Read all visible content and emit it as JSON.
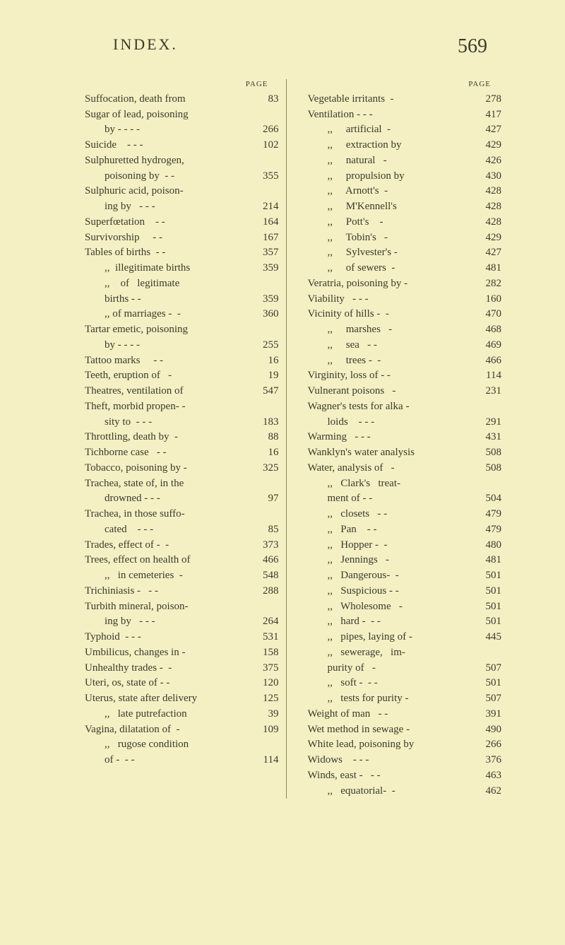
{
  "header": {
    "title": "INDEX.",
    "page_number": "569",
    "page_label": "PAGE"
  },
  "left_column": [
    {
      "text": "Suffocation, death from",
      "page": "83"
    },
    {
      "text": "Sugar of lead, poisoning",
      "page": ""
    },
    {
      "text": "by - - - -",
      "page": "266",
      "indent": 1
    },
    {
      "text": "Suicide    - - -",
      "page": "102"
    },
    {
      "text": "Sulphuretted hydrogen,",
      "page": ""
    },
    {
      "text": "poisoning by  - -",
      "page": "355",
      "indent": 1
    },
    {
      "text": "Sulphuric acid, poison-",
      "page": ""
    },
    {
      "text": "ing by   - - -",
      "page": "214",
      "indent": 1
    },
    {
      "text": "Superfœtation    - -",
      "page": "164"
    },
    {
      "text": "Survivorship     - -",
      "page": "167"
    },
    {
      "text": "",
      "page": ""
    },
    {
      "text": "Tables of births  - -",
      "page": "357"
    },
    {
      "text": ",,  illegitimate births",
      "page": "359",
      "indent": 1
    },
    {
      "text": ",,    of   legitimate",
      "page": "",
      "indent": 1
    },
    {
      "text": "births - -",
      "page": "359",
      "indent": 2
    },
    {
      "text": ",, of marriages -  -",
      "page": "360",
      "indent": 1
    },
    {
      "text": "Tartar emetic, poisoning",
      "page": ""
    },
    {
      "text": "by - - - -",
      "page": "255",
      "indent": 1
    },
    {
      "text": "Tattoo marks     - -",
      "page": "16"
    },
    {
      "text": "Teeth, eruption of   -",
      "page": "19"
    },
    {
      "text": "Theatres, ventilation of",
      "page": "547"
    },
    {
      "text": "Theft, morbid propen- -",
      "page": ""
    },
    {
      "text": "sity to  - - -",
      "page": "183",
      "indent": 1
    },
    {
      "text": "Throttling, death by  -",
      "page": "88"
    },
    {
      "text": "Tichborne case   - -",
      "page": "16"
    },
    {
      "text": "Tobacco, poisoning by -",
      "page": "325"
    },
    {
      "text": "Trachea, state of, in the",
      "page": ""
    },
    {
      "text": "drowned - - -",
      "page": "97",
      "indent": 1
    },
    {
      "text": "Trachea, in those suffo-",
      "page": ""
    },
    {
      "text": "cated    - - -",
      "page": "85",
      "indent": 1
    },
    {
      "text": "Trades, effect of -  -",
      "page": "373"
    },
    {
      "text": "Trees, effect on health of",
      "page": "466"
    },
    {
      "text": ",,   in cemeteries  -",
      "page": "548",
      "indent": 1
    },
    {
      "text": "Trichiniasis -   - -",
      "page": "288"
    },
    {
      "text": "Turbith mineral, poison-",
      "page": ""
    },
    {
      "text": "ing by   - - -",
      "page": "264",
      "indent": 1
    },
    {
      "text": "Typhoid  - - -",
      "page": "531"
    },
    {
      "text": "",
      "page": ""
    },
    {
      "text": "Umbilicus, changes in -",
      "page": "158"
    },
    {
      "text": "Unhealthy trades -  -",
      "page": "375"
    },
    {
      "text": "Uteri, os, state of - -",
      "page": "120"
    },
    {
      "text": "Uterus, state after delivery",
      "page": "125"
    },
    {
      "text": ",,   late putrefaction",
      "page": "39",
      "indent": 1
    },
    {
      "text": "",
      "page": ""
    },
    {
      "text": "Vagina, dilatation of  -",
      "page": "109"
    },
    {
      "text": ",,   rugose condition",
      "page": "",
      "indent": 1
    },
    {
      "text": "of -  - -",
      "page": "114",
      "indent": 2
    }
  ],
  "right_column": [
    {
      "text": "Vegetable irritants  -",
      "page": "278"
    },
    {
      "text": "Ventilation - - -",
      "page": "417"
    },
    {
      "text": ",,     artificial  -",
      "page": "427",
      "indent": 1
    },
    {
      "text": ",,     extraction by",
      "page": "429",
      "indent": 1
    },
    {
      "text": ",,     natural   -",
      "page": "426",
      "indent": 1
    },
    {
      "text": ",,     propulsion by",
      "page": "430",
      "indent": 1
    },
    {
      "text": ",,     Arnott's  -",
      "page": "428",
      "indent": 1
    },
    {
      "text": ",,     M'Kennell's",
      "page": "428",
      "indent": 1
    },
    {
      "text": ",,     Pott's    -",
      "page": "428",
      "indent": 1
    },
    {
      "text": ",,     Tobin's   -",
      "page": "429",
      "indent": 1
    },
    {
      "text": ",,     Sylvester's -",
      "page": "427",
      "indent": 1
    },
    {
      "text": ",,     of sewers  -",
      "page": "481",
      "indent": 1
    },
    {
      "text": "Veratria, poisoning by -",
      "page": "282"
    },
    {
      "text": "Viability   - - -",
      "page": "160"
    },
    {
      "text": "Vicinity of hills -  -",
      "page": "470"
    },
    {
      "text": ",,     marshes   -",
      "page": "468",
      "indent": 1
    },
    {
      "text": ",,     sea   - -",
      "page": "469",
      "indent": 1
    },
    {
      "text": ",,     trees -  -",
      "page": "466",
      "indent": 1
    },
    {
      "text": "Virginity, loss of - -",
      "page": "114"
    },
    {
      "text": "Vulnerant poisons   -",
      "page": "231"
    },
    {
      "text": "",
      "page": ""
    },
    {
      "text": "Wagner's tests for alka -",
      "page": ""
    },
    {
      "text": "loids    - - -",
      "page": "291",
      "indent": 1
    },
    {
      "text": "Warming   - - -",
      "page": "431"
    },
    {
      "text": "Wanklyn's water analysis",
      "page": "508"
    },
    {
      "text": "Water, analysis of   -",
      "page": "508"
    },
    {
      "text": ",,   Clark's   treat-",
      "page": "",
      "indent": 1
    },
    {
      "text": "ment of - -",
      "page": "504",
      "indent": 2
    },
    {
      "text": ",,   closets   - -",
      "page": "479",
      "indent": 1
    },
    {
      "text": ",,   Pan    - -",
      "page": "479",
      "indent": 1
    },
    {
      "text": ",,   Hopper -  -",
      "page": "480",
      "indent": 1
    },
    {
      "text": ",,   Jennings   -",
      "page": "481",
      "indent": 1
    },
    {
      "text": ",,   Dangerous-  -",
      "page": "501",
      "indent": 1
    },
    {
      "text": ",,   Suspicious - -",
      "page": "501",
      "indent": 1
    },
    {
      "text": ",,   Wholesome   -",
      "page": "501",
      "indent": 1
    },
    {
      "text": ",,   hard -  - -",
      "page": "501",
      "indent": 1
    },
    {
      "text": ",,   pipes, laying of -",
      "page": "445",
      "indent": 1
    },
    {
      "text": ",,   sewerage,   im-",
      "page": "",
      "indent": 1
    },
    {
      "text": "purity of   -",
      "page": "507",
      "indent": 2
    },
    {
      "text": ",,   soft -  - -",
      "page": "501",
      "indent": 1
    },
    {
      "text": ",,   tests for purity -",
      "page": "507",
      "indent": 1
    },
    {
      "text": "Weight of man   - -",
      "page": "391"
    },
    {
      "text": "Wet method in sewage -",
      "page": "490"
    },
    {
      "text": "White lead, poisoning by",
      "page": "266"
    },
    {
      "text": "Widows    - - -",
      "page": "376"
    },
    {
      "text": "Winds, east -   - -",
      "page": "463"
    },
    {
      "text": ",,   equatorial-  -",
      "page": "462",
      "indent": 1
    }
  ]
}
